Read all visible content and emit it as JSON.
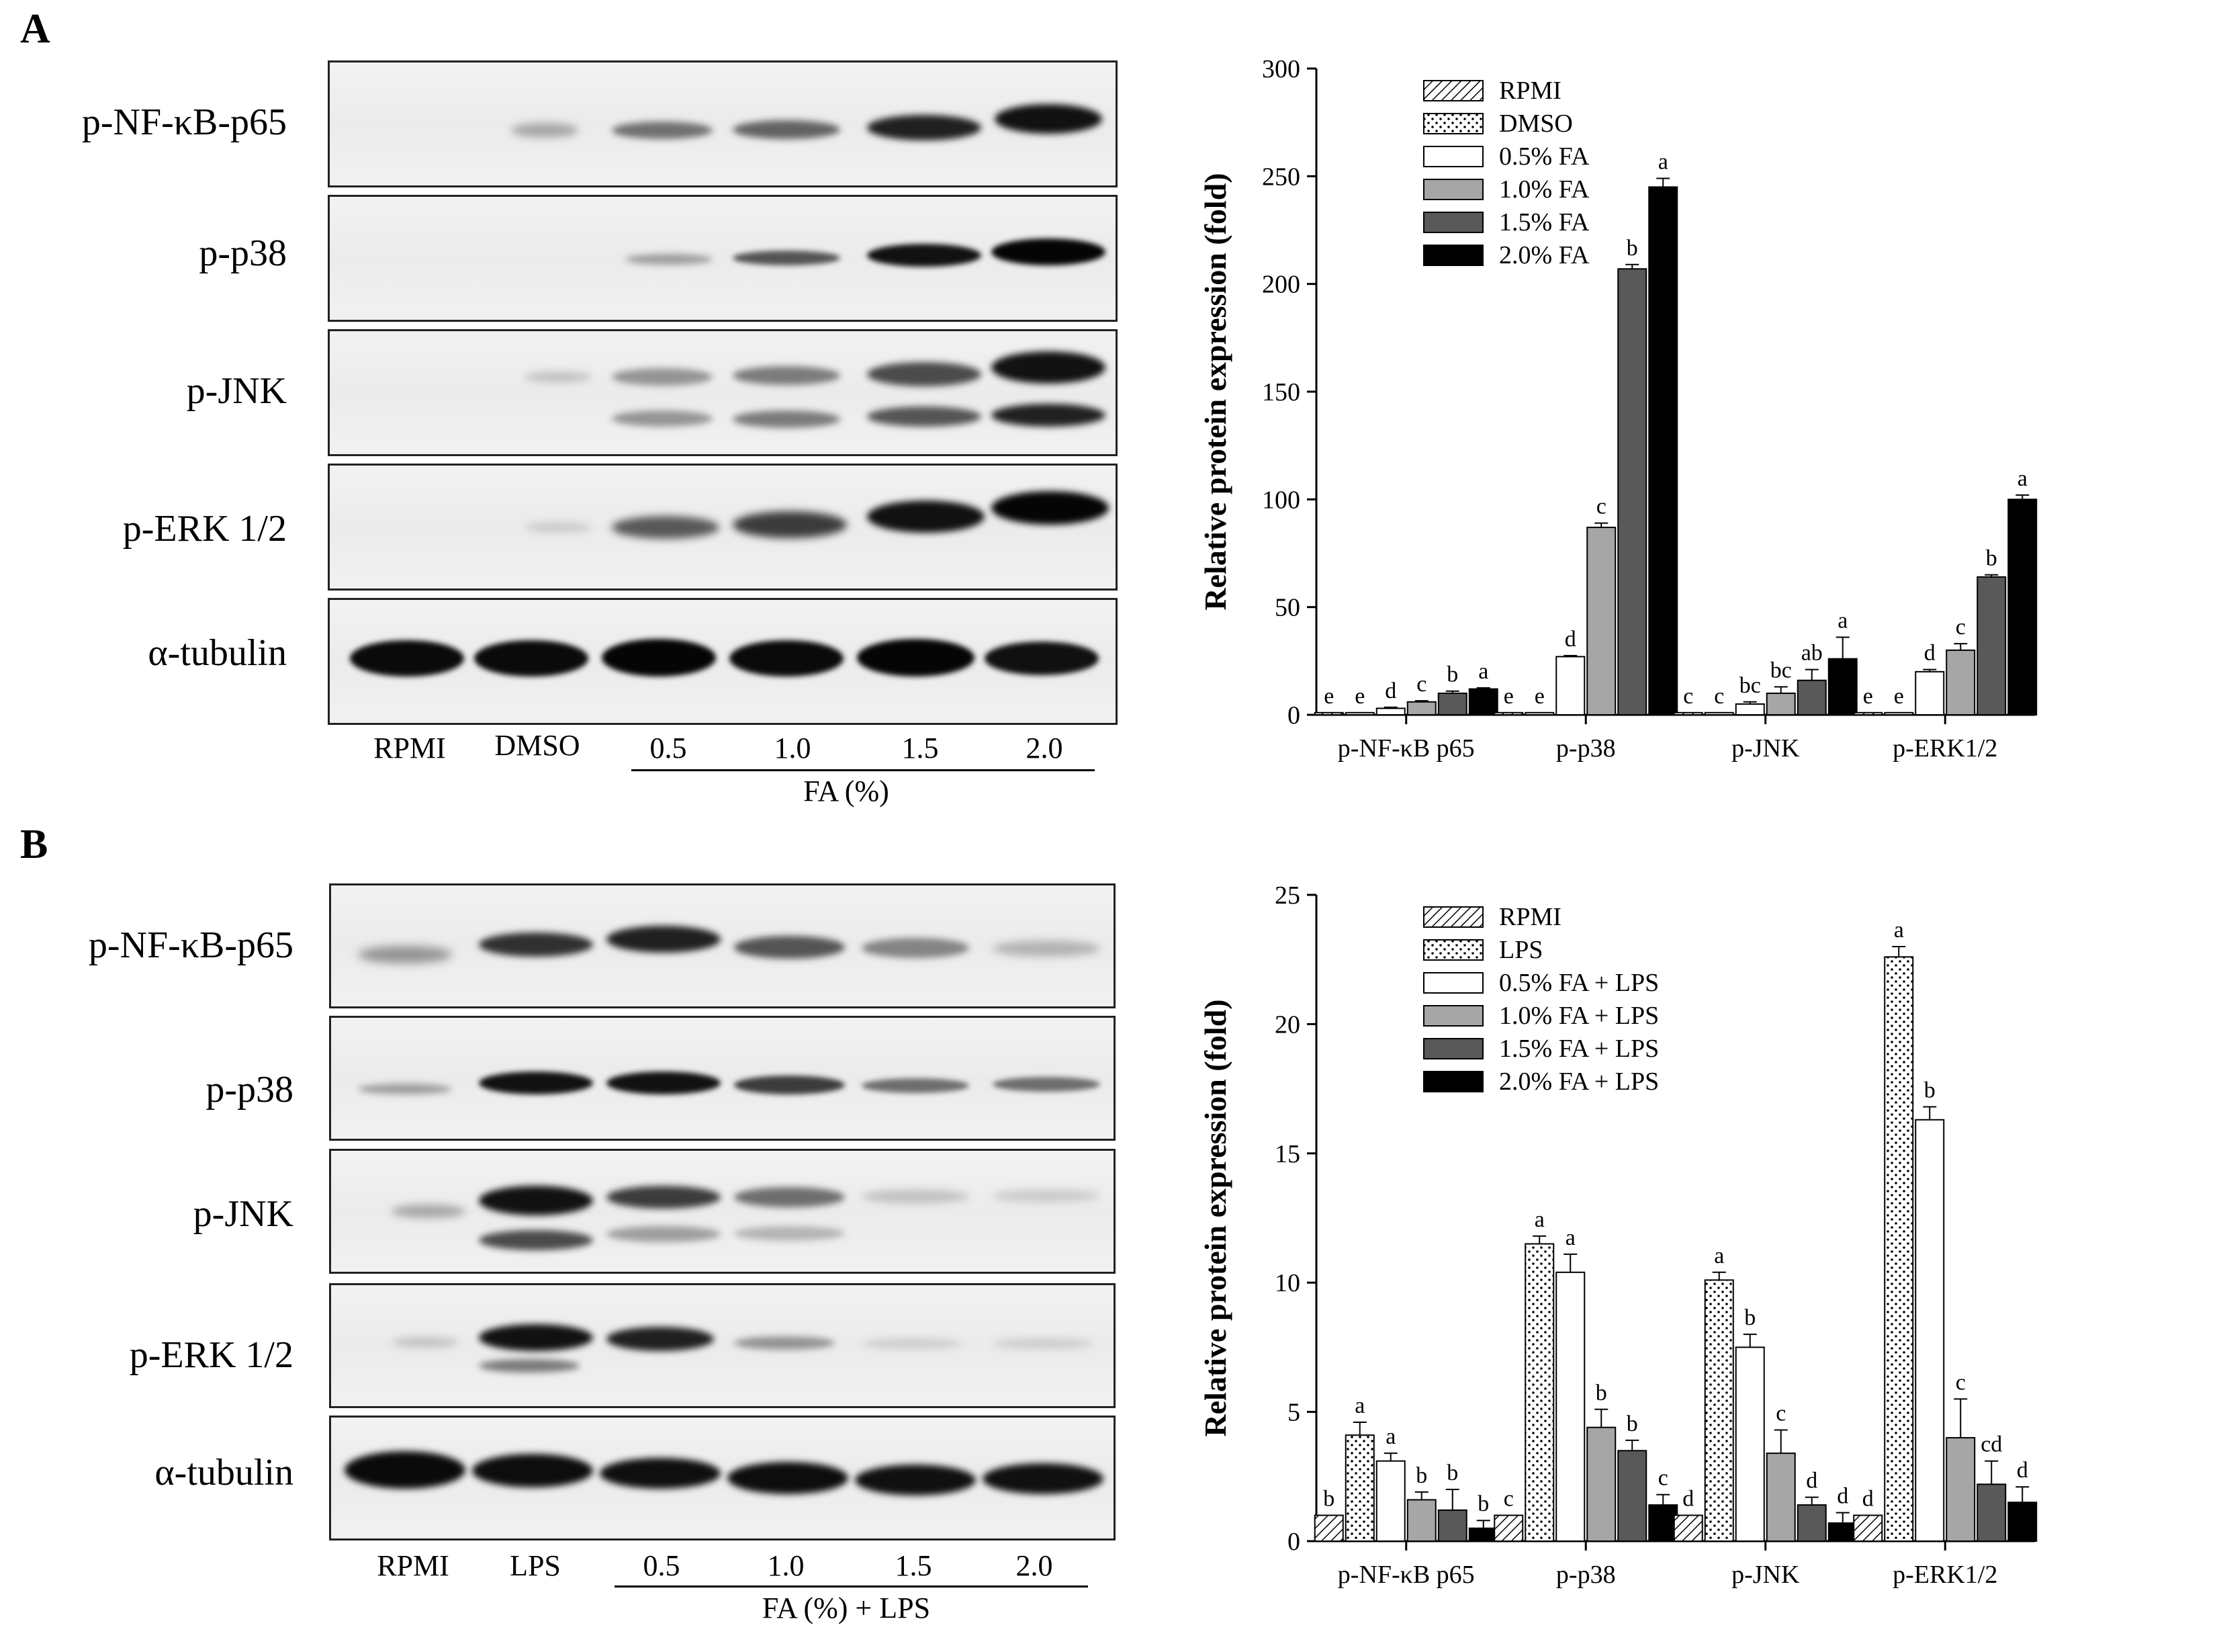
{
  "figure": {
    "panel_a": {
      "letter": "A",
      "blot": {
        "rows": [
          "p-NF-κB-p65",
          "p-p38",
          "p-JNK",
          "p-ERK 1/2",
          "α-tubulin"
        ],
        "lanes": [
          "RPMI",
          "DMSO",
          "0.5",
          "1.0",
          "1.5",
          "2.0"
        ],
        "bracket_label": "FA (%)"
      }
    },
    "panel_b": {
      "letter": "B",
      "blot": {
        "rows": [
          "p-NF-κB-p65",
          "p-p38",
          "p-JNK",
          "p-ERK 1/2",
          "α-tubulin"
        ],
        "lanes": [
          "RPMI",
          "LPS",
          "0.5",
          "1.0",
          "1.5",
          "2.0"
        ],
        "bracket_label": "FA (%) + LPS"
      }
    }
  },
  "chart_data": [
    {
      "type": "bar",
      "panel": "A",
      "ylabel": "Relative protein expression (fold)",
      "xlabel": "",
      "ylim": [
        0,
        300
      ],
      "yticks": [
        0,
        50,
        100,
        150,
        200,
        250,
        300
      ],
      "grid": false,
      "legend_position": "top-left",
      "categories": [
        "p-NF-κB p65",
        "p-p38",
        "p-JNK",
        "p-ERK1/2"
      ],
      "series": [
        {
          "name": "RPMI",
          "pattern": "hatch",
          "values": [
            1,
            1,
            1,
            1
          ],
          "errors": [
            0,
            0,
            0,
            0
          ],
          "letters": [
            "e",
            "e",
            "c",
            "e"
          ]
        },
        {
          "name": "DMSO",
          "pattern": "dots",
          "values": [
            1,
            1,
            1,
            1
          ],
          "errors": [
            0,
            0,
            0,
            0
          ],
          "letters": [
            "e",
            "e",
            "c",
            "e"
          ]
        },
        {
          "name": "0.5% FA",
          "color": "#ffffff",
          "values": [
            3,
            27,
            5,
            20
          ],
          "errors": [
            0.5,
            0.5,
            1,
            1
          ],
          "letters": [
            "d",
            "d",
            "bc",
            "d"
          ]
        },
        {
          "name": "1.0% FA",
          "color": "#a6a6a6",
          "values": [
            6,
            87,
            10,
            30
          ],
          "errors": [
            0.5,
            2,
            3,
            3
          ],
          "letters": [
            "c",
            "c",
            "bc",
            "c"
          ]
        },
        {
          "name": "1.5% FA",
          "color": "#595959",
          "values": [
            10,
            207,
            16,
            64
          ],
          "errors": [
            1,
            2,
            5,
            1
          ],
          "letters": [
            "b",
            "b",
            "ab",
            "b"
          ]
        },
        {
          "name": "2.0% FA",
          "color": "#000000",
          "values": [
            12,
            245,
            26,
            100
          ],
          "errors": [
            0.5,
            4,
            10,
            2
          ],
          "letters": [
            "a",
            "a",
            "a",
            "a"
          ]
        }
      ]
    },
    {
      "type": "bar",
      "panel": "B",
      "ylabel": "Relative protein expression (fold)",
      "xlabel": "",
      "ylim": [
        0,
        25
      ],
      "yticks": [
        0,
        5,
        10,
        15,
        20,
        25
      ],
      "grid": false,
      "legend_position": "top-left",
      "categories": [
        "p-NF-κB p65",
        "p-p38",
        "p-JNK",
        "p-ERK1/2"
      ],
      "series": [
        {
          "name": "RPMI",
          "pattern": "hatch",
          "values": [
            1,
            1,
            1,
            1
          ],
          "errors": [
            0,
            0,
            0,
            0
          ],
          "letters": [
            "b",
            "c",
            "d",
            "d"
          ]
        },
        {
          "name": "LPS",
          "pattern": "dots",
          "values": [
            4.1,
            11.5,
            10.1,
            22.6
          ],
          "errors": [
            0.5,
            0.3,
            0.3,
            0.4
          ],
          "letters": [
            "a",
            "a",
            "a",
            "a"
          ]
        },
        {
          "name": "0.5% FA + LPS",
          "color": "#ffffff",
          "values": [
            3.1,
            10.4,
            7.5,
            16.3
          ],
          "errors": [
            0.3,
            0.7,
            0.5,
            0.5
          ],
          "letters": [
            "a",
            "a",
            "b",
            "b"
          ]
        },
        {
          "name": "1.0% FA + LPS",
          "color": "#a6a6a6",
          "values": [
            1.6,
            4.4,
            3.4,
            4.0
          ],
          "errors": [
            0.3,
            0.7,
            0.9,
            1.5
          ],
          "letters": [
            "b",
            "b",
            "c",
            "c"
          ]
        },
        {
          "name": "1.5% FA + LPS",
          "color": "#595959",
          "values": [
            1.2,
            3.5,
            1.4,
            2.2
          ],
          "errors": [
            0.8,
            0.4,
            0.3,
            0.9
          ],
          "letters": [
            "b",
            "b",
            "d",
            "cd"
          ]
        },
        {
          "name": "2.0% FA + LPS",
          "color": "#000000",
          "values": [
            0.5,
            1.4,
            0.7,
            1.5
          ],
          "errors": [
            0.3,
            0.4,
            0.4,
            0.6
          ],
          "letters": [
            "b",
            "c",
            "d",
            "d"
          ]
        }
      ]
    }
  ]
}
